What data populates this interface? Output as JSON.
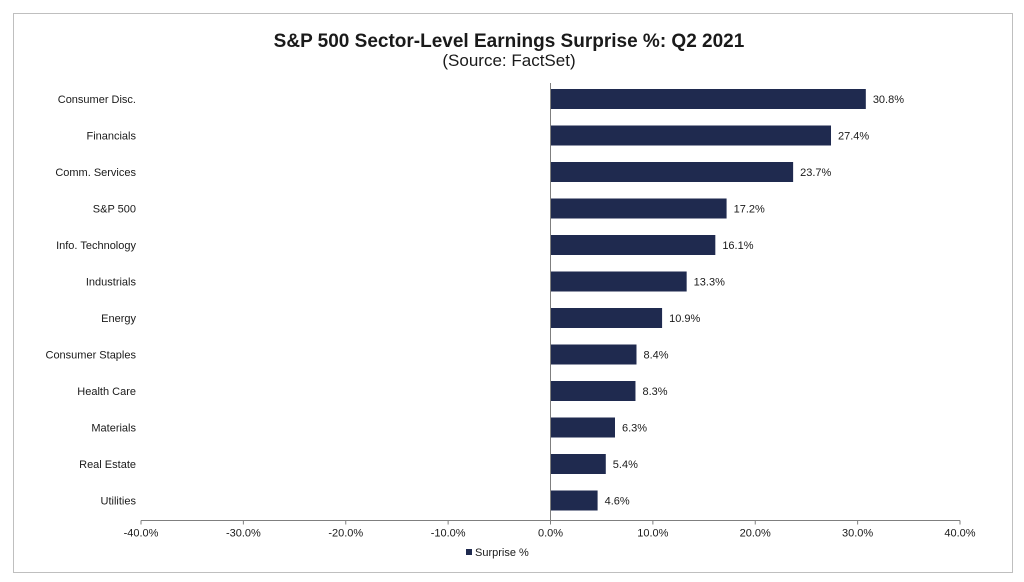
{
  "chart_data": {
    "type": "bar",
    "orientation": "horizontal",
    "title": "S&P 500 Sector-Level Earnings Surprise %: Q2 2021",
    "subtitle": "(Source: FactSet)",
    "categories": [
      "Consumer Disc.",
      "Financials",
      "Comm. Services",
      "S&P 500",
      "Info. Technology",
      "Industrials",
      "Energy",
      "Consumer Staples",
      "Health Care",
      "Materials",
      "Real Estate",
      "Utilities"
    ],
    "series": [
      {
        "name": "Surprise %",
        "values": [
          30.8,
          27.4,
          23.7,
          17.2,
          16.1,
          13.3,
          10.9,
          8.4,
          8.3,
          6.3,
          5.4,
          4.6
        ],
        "labels": [
          "30.8%",
          "27.4%",
          "23.7%",
          "17.2%",
          "16.1%",
          "13.3%",
          "10.9%",
          "8.4%",
          "8.3%",
          "6.3%",
          "5.4%",
          "4.6%"
        ],
        "color": "#1f2a4f"
      }
    ],
    "xlim": [
      -40,
      40
    ],
    "xticks": [
      -40,
      -30,
      -20,
      -10,
      0,
      10,
      20,
      30,
      40
    ],
    "xtick_labels": [
      "-40.0%",
      "-30.0%",
      "-20.0%",
      "-10.0%",
      "0.0%",
      "10.0%",
      "20.0%",
      "30.0%",
      "40.0%"
    ],
    "xlabel": "",
    "ylabel": "",
    "grid": false,
    "legend_position": "bottom-center",
    "axis_color": "#7f7f7f"
  }
}
